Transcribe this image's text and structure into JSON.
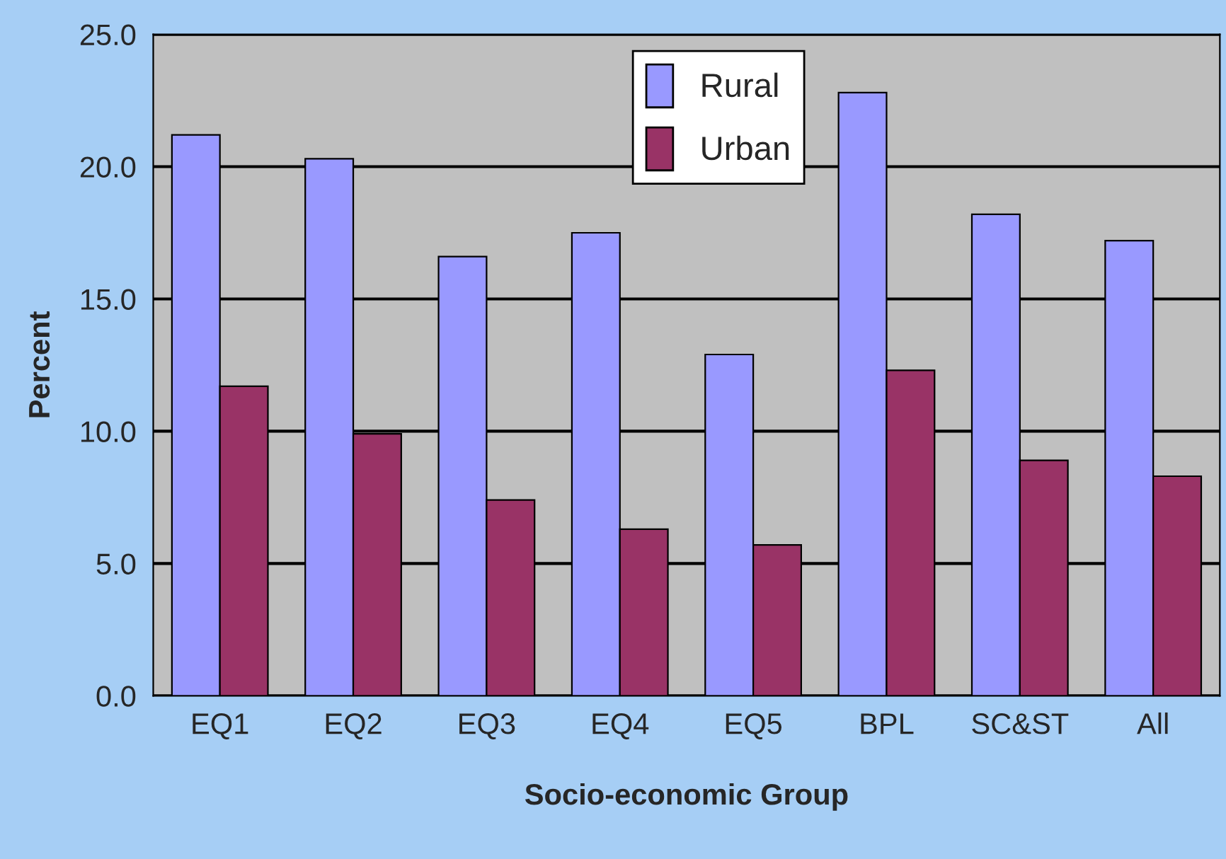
{
  "chart_data": {
    "type": "bar",
    "xlabel": "Socio-economic Group",
    "ylabel": "Percent",
    "categories": [
      "EQ1",
      "EQ2",
      "EQ3",
      "EQ4",
      "EQ5",
      "BPL",
      "SC&ST",
      "All"
    ],
    "series": [
      {
        "name": "Rural",
        "color": "#9999ff",
        "values": [
          21.2,
          20.3,
          16.6,
          17.5,
          12.9,
          22.8,
          18.2,
          17.2
        ]
      },
      {
        "name": "Urban",
        "color": "#993366",
        "values": [
          11.7,
          9.9,
          7.4,
          6.3,
          5.7,
          12.3,
          8.9,
          8.3
        ]
      }
    ],
    "ylim": [
      0,
      25
    ],
    "yticks": [
      {
        "value": 0,
        "label": "0.0"
      },
      {
        "value": 5,
        "label": "5.0"
      },
      {
        "value": 10,
        "label": "10.0"
      },
      {
        "value": 15,
        "label": "15.0"
      },
      {
        "value": 20,
        "label": "20.0"
      },
      {
        "value": 25,
        "label": "25.0"
      }
    ],
    "grid": "y",
    "legend": "top"
  }
}
